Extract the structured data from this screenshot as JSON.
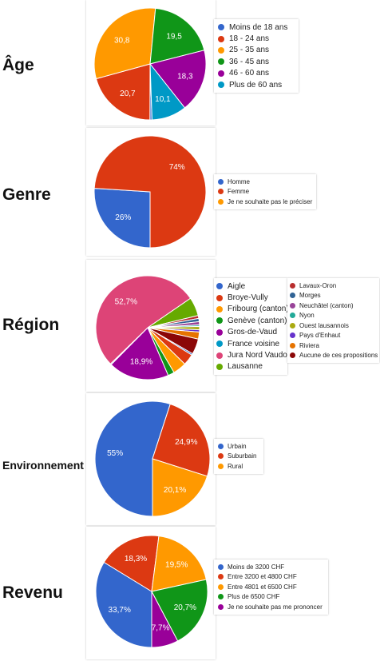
{
  "chart_data": [
    {
      "type": "pie",
      "title": "Âge",
      "legend_position": "right",
      "slices": [
        {
          "label": "Moins de 18 ans",
          "value": 0.6,
          "value_label": "",
          "color": "#3366cc"
        },
        {
          "label": "18 - 24 ans",
          "value": 20.7,
          "value_label": "20,7",
          "color": "#dc3912"
        },
        {
          "label": "25 - 35 ans",
          "value": 30.8,
          "value_label": "30,8",
          "color": "#ff9900"
        },
        {
          "label": "36 - 45 ans",
          "value": 19.5,
          "value_label": "19,5",
          "color": "#109618"
        },
        {
          "label": "46 - 60 ans",
          "value": 18.3,
          "value_label": "18,3",
          "color": "#990099"
        },
        {
          "label": "Plus de 60 ans",
          "value": 10.1,
          "value_label": "10,1",
          "color": "#0099c6"
        }
      ]
    },
    {
      "type": "pie",
      "title": "Genre",
      "legend_position": "right",
      "slices": [
        {
          "label": "Homme",
          "value": 26,
          "value_label": "26%",
          "color": "#3366cc"
        },
        {
          "label": "Femme",
          "value": 74,
          "value_label": "74%",
          "color": "#dc3912"
        },
        {
          "label": "Je ne souhaite pas le préciser",
          "value": 0,
          "value_label": "",
          "color": "#ff9900"
        }
      ]
    },
    {
      "type": "pie",
      "title": "Région",
      "legend_position": "right",
      "slices": [
        {
          "label": "Aigle",
          "value": 0.5,
          "value_label": "",
          "color": "#3366cc"
        },
        {
          "label": "Broye-Vully",
          "value": 3.5,
          "value_label": "",
          "color": "#dc3912"
        },
        {
          "label": "Fribourg (canton)",
          "value": 4.2,
          "value_label": "",
          "color": "#ff9900"
        },
        {
          "label": "Genève (canton)",
          "value": 2.0,
          "value_label": "",
          "color": "#109618"
        },
        {
          "label": "Gros-de-Vaud",
          "value": 18.9,
          "value_label": "18,9%",
          "color": "#990099"
        },
        {
          "label": "France voisine",
          "value": 0.3,
          "value_label": "",
          "color": "#0099c6"
        },
        {
          "label": "Jura Nord Vaudois",
          "value": 52.7,
          "value_label": "52,7%",
          "color": "#dd4477"
        },
        {
          "label": "Lausanne",
          "value": 5.8,
          "value_label": "",
          "color": "#66aa00"
        },
        {
          "label": "Lavaux-Oron",
          "value": 0.9,
          "value_label": "",
          "color": "#b82e2e"
        },
        {
          "label": "Morges",
          "value": 1.0,
          "value_label": "",
          "color": "#316395"
        },
        {
          "label": "Neuchâtel (canton)",
          "value": 1.0,
          "value_label": "",
          "color": "#994499"
        },
        {
          "label": "Nyon",
          "value": 0.5,
          "value_label": "",
          "color": "#22aa99"
        },
        {
          "label": "Ouest lausannois",
          "value": 1.0,
          "value_label": "",
          "color": "#aaaa11"
        },
        {
          "label": "Pays d'Enhaut",
          "value": 0.7,
          "value_label": "",
          "color": "#6633cc"
        },
        {
          "label": "Riviera",
          "value": 2.2,
          "value_label": "",
          "color": "#e67300"
        },
        {
          "label": "Aucune de ces propositions",
          "value": 4.8,
          "value_label": "",
          "color": "#8b0707"
        }
      ]
    },
    {
      "type": "pie",
      "title": "Environnement",
      "legend_position": "right",
      "slices": [
        {
          "label": "Urbain",
          "value": 55,
          "value_label": "55%",
          "color": "#3366cc"
        },
        {
          "label": "Suburbain",
          "value": 24.9,
          "value_label": "24,9%",
          "color": "#dc3912"
        },
        {
          "label": "Rural",
          "value": 20.1,
          "value_label": "20,1%",
          "color": "#ff9900"
        }
      ]
    },
    {
      "type": "pie",
      "title": "Revenu",
      "legend_position": "right",
      "slices": [
        {
          "label": "Moins de 3200 CHF",
          "value": 33.7,
          "value_label": "33,7%",
          "color": "#3366cc"
        },
        {
          "label": "Entre 3200 et 4800 CHF",
          "value": 18.3,
          "value_label": "18,3%",
          "color": "#dc3912"
        },
        {
          "label": "Entre 4801 et 6500 CHF",
          "value": 19.5,
          "value_label": "19,5%",
          "color": "#ff9900"
        },
        {
          "label": "Plus de 6500 CHF",
          "value": 20.7,
          "value_label": "20,7%",
          "color": "#109618"
        },
        {
          "label": "Je ne souhaite pas me prononcer",
          "value": 7.7,
          "value_label": "7,7%",
          "color": "#990099"
        }
      ]
    }
  ]
}
